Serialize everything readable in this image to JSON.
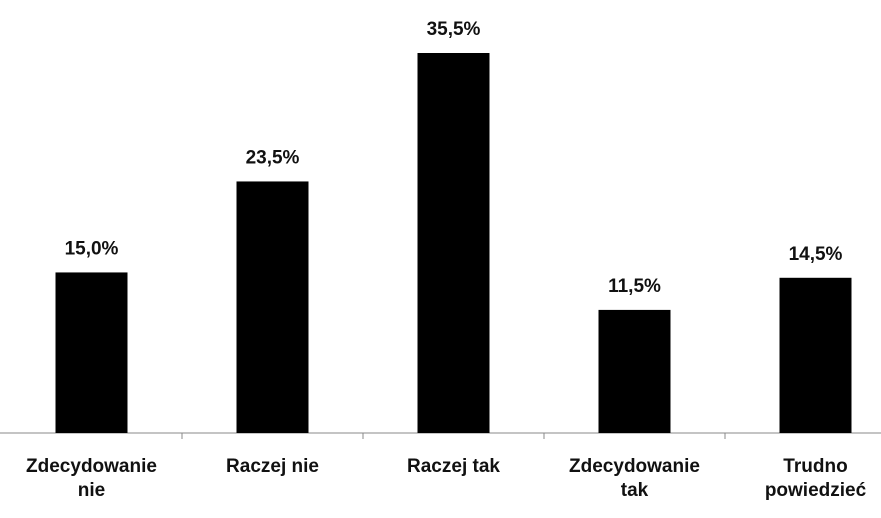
{
  "chart_data": {
    "type": "bar",
    "categories": [
      "Zdecydowanie nie",
      "Raczej nie",
      "Raczej tak",
      "Zdecydowanie tak",
      "Trudno powiedzieć"
    ],
    "values": [
      15.0,
      23.5,
      35.5,
      11.5,
      14.5
    ],
    "value_labels": [
      "15,0%",
      "23,5%",
      "35,5%",
      "11,5%",
      "14,5%"
    ],
    "color": "#000000"
  }
}
